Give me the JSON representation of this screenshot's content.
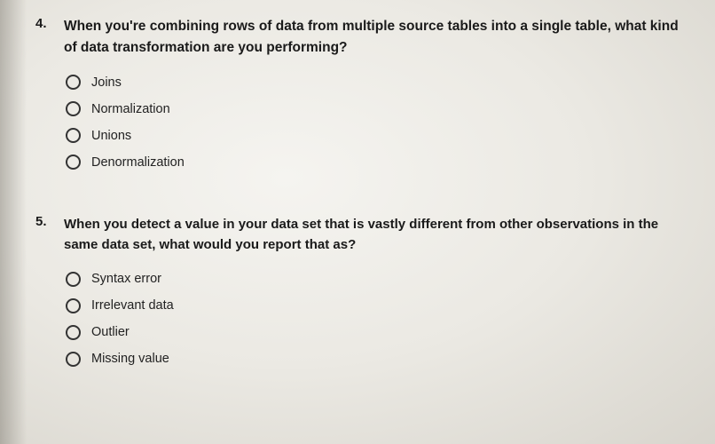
{
  "questions": [
    {
      "number": "4.",
      "text": "When you're combining rows of data from multiple source tables into a single table, what kind of data transformation are you performing?",
      "options": [
        "Joins",
        "Normalization",
        "Unions",
        "Denormalization"
      ]
    },
    {
      "number": "5.",
      "text": "When you detect a value in your data set that is vastly different from other observations in the same data set, what would you report that as?",
      "options": [
        "Syntax error",
        "Irrelevant data",
        "Outlier",
        "Missing value"
      ]
    }
  ],
  "colors": {
    "text": "#1a1a1a",
    "radio_border": "#333333",
    "bg_center": "#f5f4f0",
    "bg_edge": "#d8d5cd"
  },
  "typography": {
    "question_fontsize_pt": 12,
    "option_fontsize_pt": 11,
    "question_weight": 600,
    "option_weight": 400
  }
}
